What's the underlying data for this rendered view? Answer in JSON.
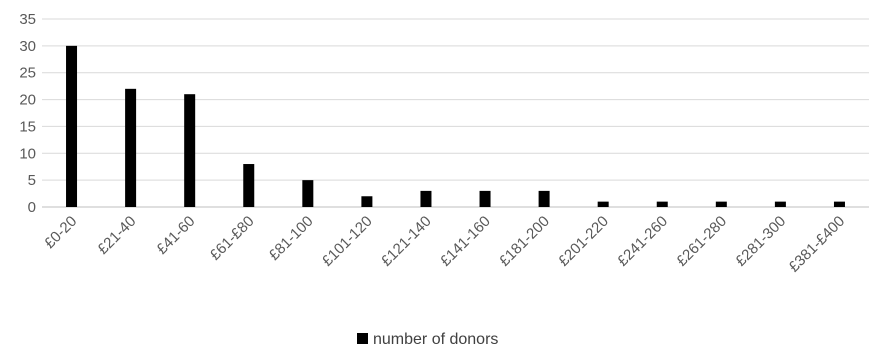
{
  "chart_data": {
    "type": "bar",
    "categories": [
      "£0-20",
      "£21-40",
      "£41-60",
      "£61-£80",
      "£81-100",
      "£101-120",
      "£121-140",
      "£141-160",
      "£181-200",
      "£201-220",
      "£241-260",
      "£261-280",
      "£281-300",
      "£381-£400"
    ],
    "series": [
      {
        "name": "number of donors",
        "values": [
          30,
          22,
          21,
          8,
          5,
          2,
          3,
          3,
          3,
          1,
          1,
          1,
          1,
          1
        ]
      }
    ],
    "ylim": [
      0,
      35
    ],
    "yticks": [
      0,
      5,
      10,
      15,
      20,
      25,
      30,
      35
    ],
    "grid": true,
    "legend_position": "bottom",
    "colors": {
      "bar": "#000000",
      "grid": "#d9d9d9",
      "axis": "#bfbfbf",
      "text": "#595959"
    }
  }
}
